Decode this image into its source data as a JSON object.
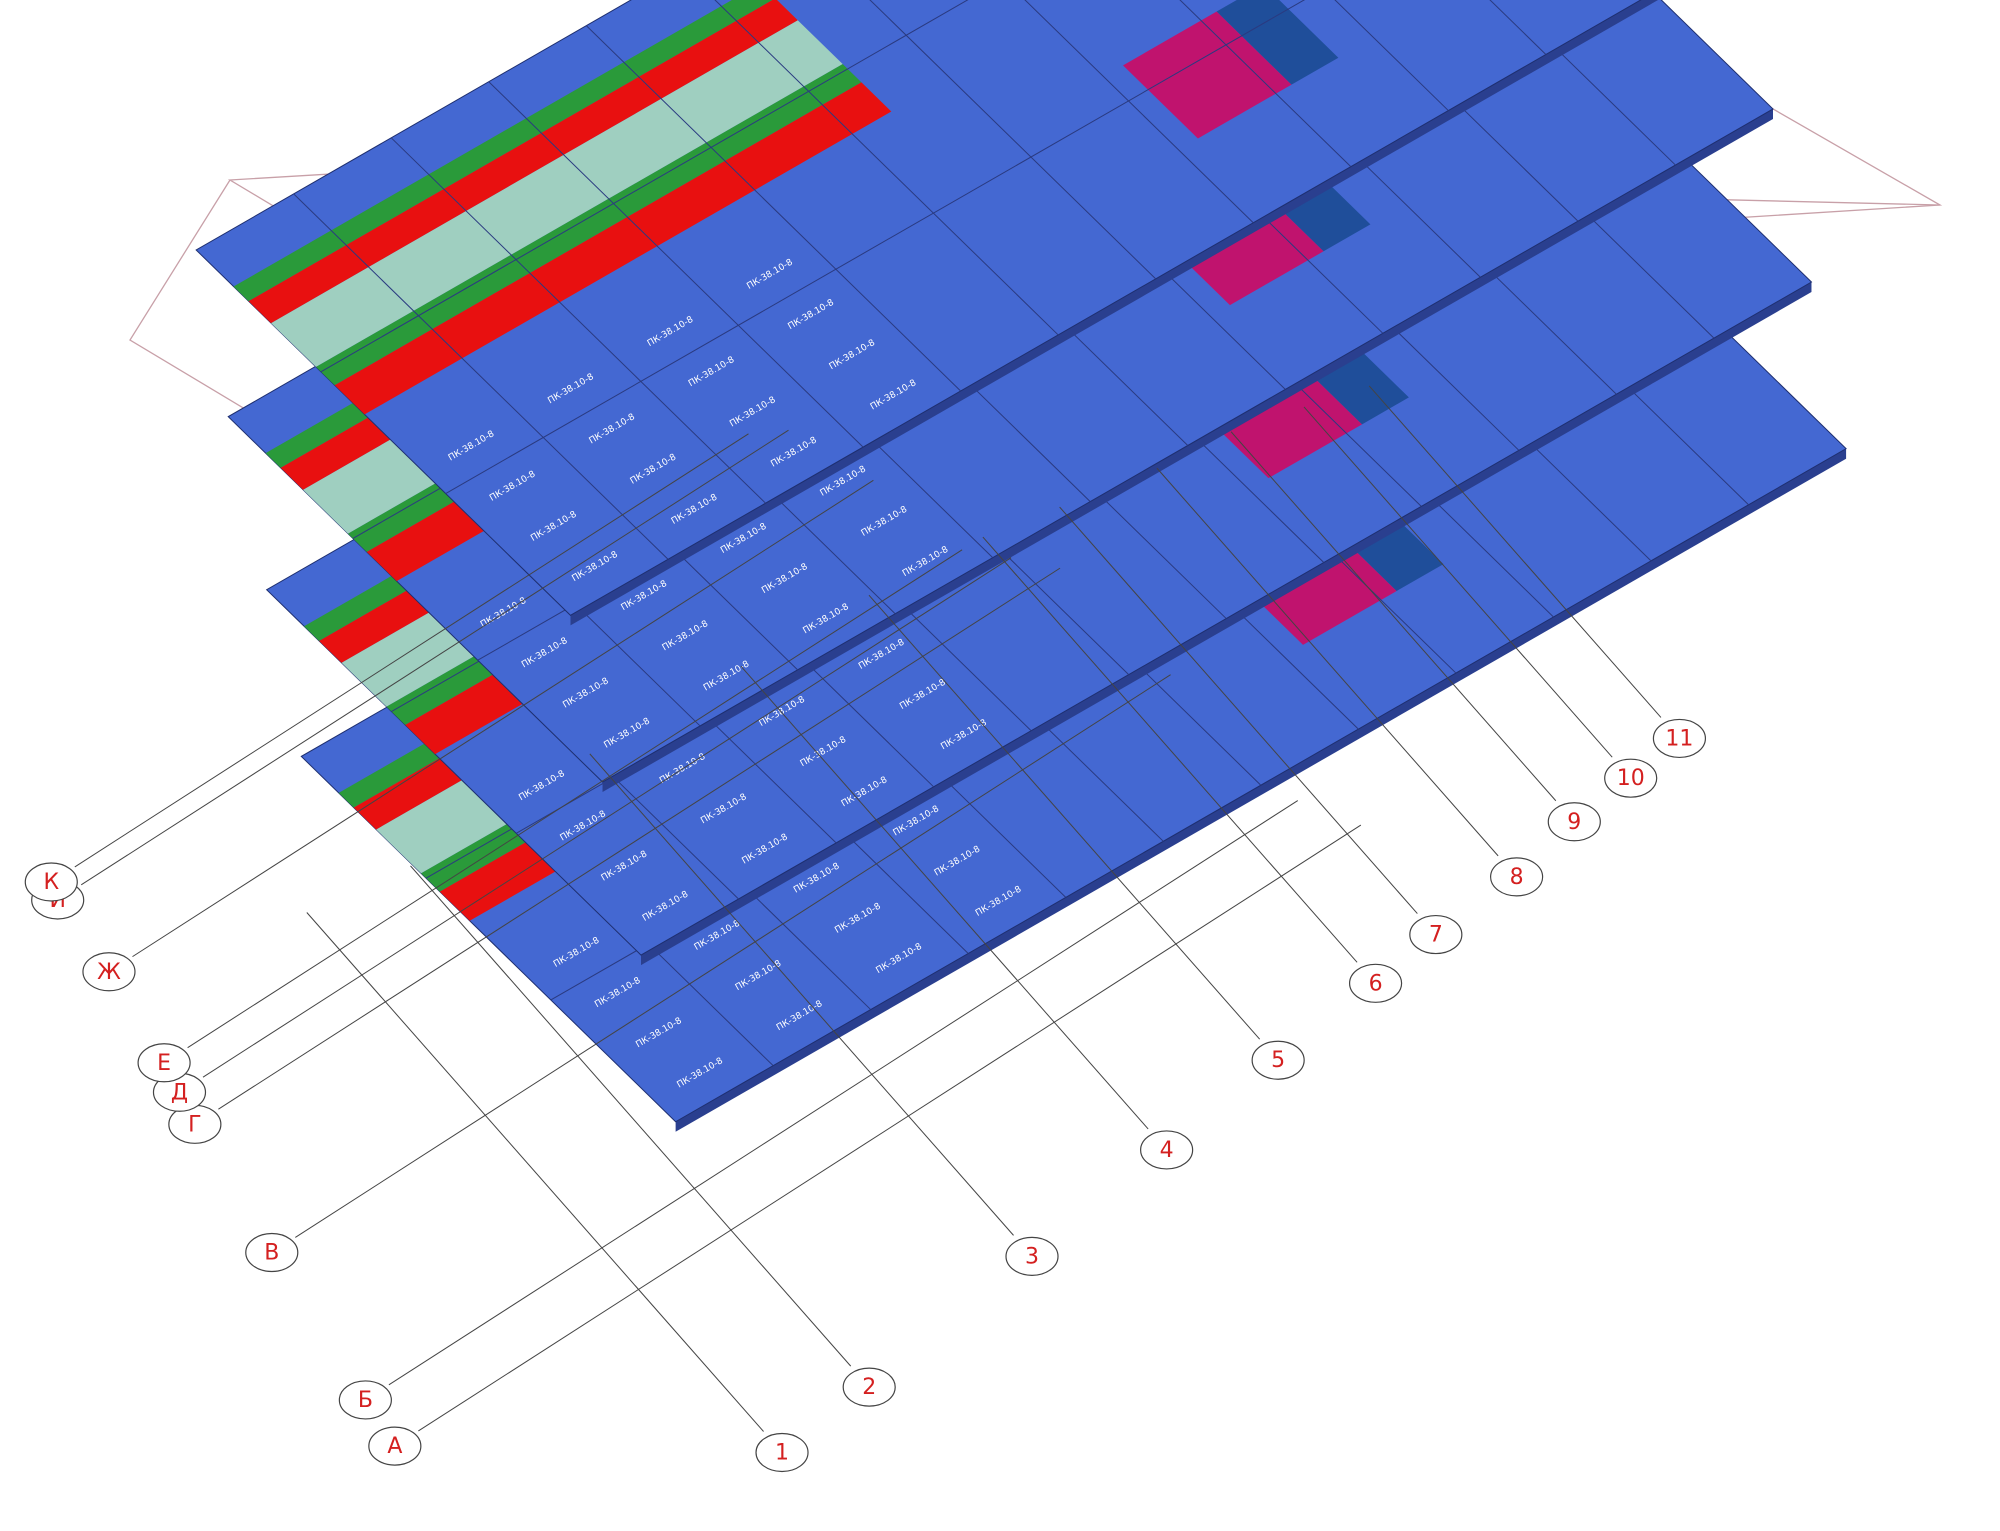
{
  "letter_axes": [
    "А",
    "Б",
    "В",
    "Г",
    "Д",
    "Е",
    "Ж",
    "И",
    "К"
  ],
  "number_axes": [
    "1",
    "2",
    "3",
    "4",
    "5",
    "6",
    "7",
    "8",
    "9",
    "10",
    "11"
  ],
  "panel_label": "ПК-38.10-8"
}
